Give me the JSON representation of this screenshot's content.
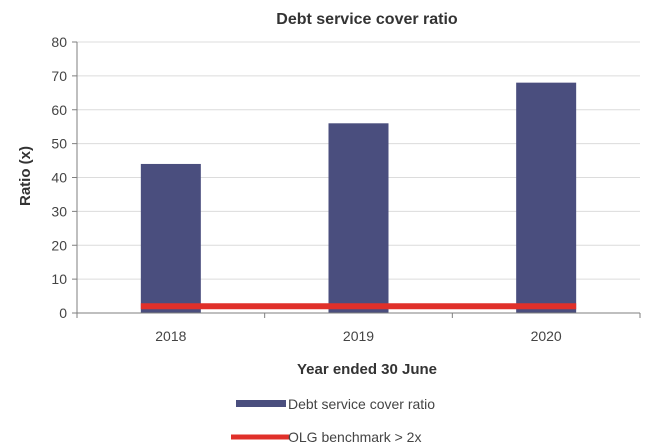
{
  "chart_data": {
    "type": "bar",
    "title": "Debt service cover ratio",
    "xlabel": "Year ended 30 June",
    "ylabel": "Ratio (x)",
    "categories": [
      "2018",
      "2019",
      "2020"
    ],
    "series": [
      {
        "name": "Debt service cover ratio",
        "type": "bar",
        "values": [
          44,
          56,
          68
        ],
        "color": "#4a4e7e"
      },
      {
        "name": "OLG benchmark > 2x",
        "type": "line",
        "values": [
          2,
          2,
          2
        ],
        "color": "#e0302a"
      }
    ],
    "ylim": [
      0,
      80
    ],
    "yticks": [
      0,
      10,
      20,
      30,
      40,
      50,
      60,
      70,
      80
    ],
    "grid": true,
    "legend_position": "bottom"
  }
}
